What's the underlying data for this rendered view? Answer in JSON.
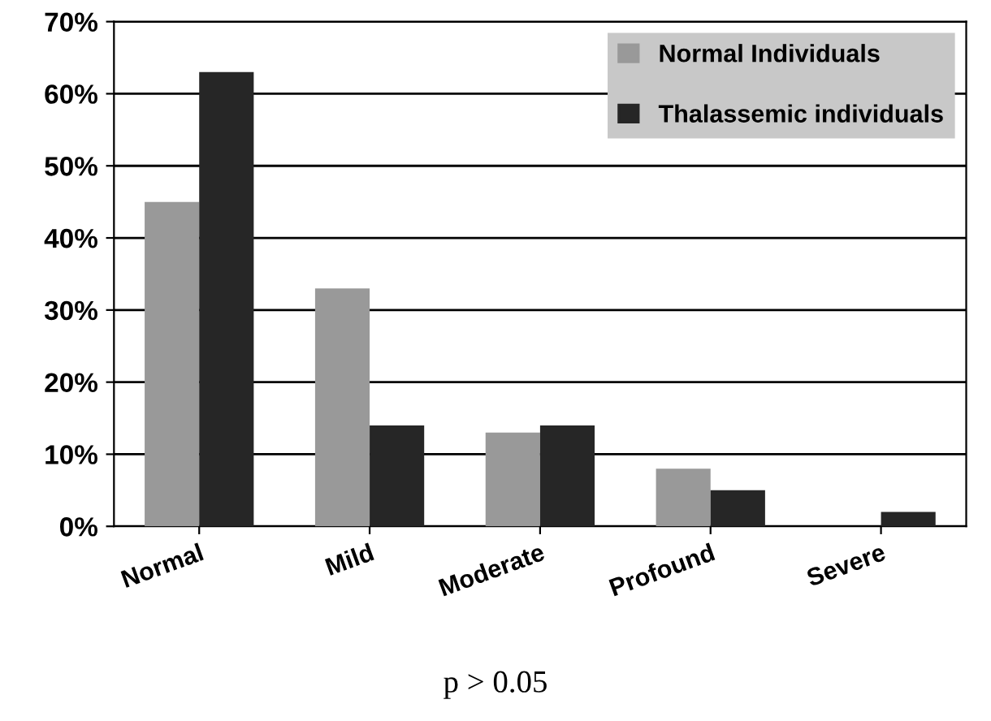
{
  "chart_data": {
    "type": "bar",
    "categories": [
      "Normal",
      "Mild",
      "Moderate",
      "Profound",
      "Severe"
    ],
    "series": [
      {
        "name": "Normal Individuals",
        "color": "#999999",
        "values": [
          45,
          33,
          13,
          8,
          0
        ]
      },
      {
        "name": "Thalassemic individuals",
        "color": "#262626",
        "values": [
          63,
          14,
          14,
          5,
          2
        ]
      }
    ],
    "ylim": [
      0,
      70
    ],
    "yticks": [
      {
        "value": 0,
        "label": "0%"
      },
      {
        "value": 10,
        "label": "10%"
      },
      {
        "value": 20,
        "label": "20%"
      },
      {
        "value": 30,
        "label": "30%"
      },
      {
        "value": 40,
        "label": "40%"
      },
      {
        "value": 50,
        "label": "50%"
      },
      {
        "value": 60,
        "label": "60%"
      },
      {
        "value": 70,
        "label": "70%"
      }
    ],
    "grid": "y",
    "legend": "top right",
    "annotations": [
      "p > 0.05"
    ]
  }
}
